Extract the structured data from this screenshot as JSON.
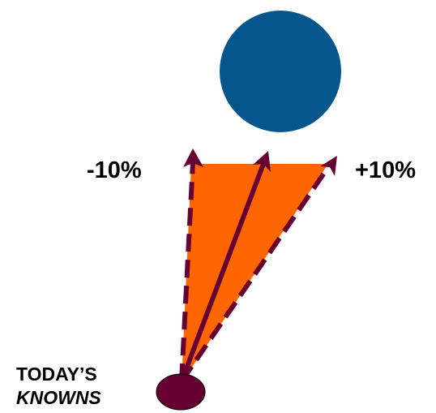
{
  "labels": {
    "minus": "-10%",
    "plus": "+10%",
    "origin_line1": "TODAY’S",
    "origin_line2": "KNOWNS"
  },
  "colors": {
    "target_circle": "#05568c",
    "cone_fill": "#ff6600",
    "arrow": "#660033",
    "origin_ellipse": "#660033",
    "text": "#000000"
  }
}
